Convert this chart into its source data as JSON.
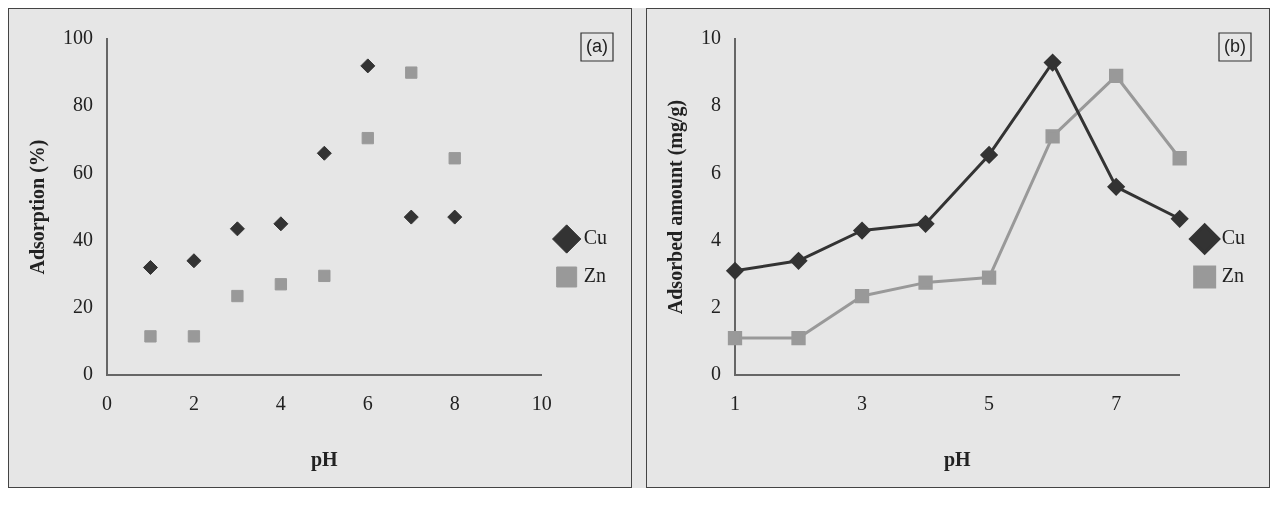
{
  "chart_data": [
    {
      "type": "scatter",
      "x": [
        1,
        2,
        3,
        4,
        5,
        6,
        7,
        8
      ],
      "xlabel": "pH",
      "ylabel": "Adsorption (%)",
      "xlim": [
        0,
        10
      ],
      "xticks": [
        0,
        2,
        4,
        6,
        8,
        10
      ],
      "ylim": [
        0,
        100
      ],
      "yticks": [
        0,
        20,
        40,
        60,
        80,
        100
      ],
      "grid": false,
      "legend": "right",
      "annotations": [
        "(a)"
      ],
      "series": [
        {
          "name": "Cu",
          "color": "#333333",
          "marker": "diamond",
          "values": [
            32,
            34,
            43.5,
            45,
            66,
            92,
            47,
            47
          ]
        },
        {
          "name": "Zn",
          "color": "#999999",
          "marker": "square",
          "values": [
            11.5,
            11.5,
            23.5,
            27,
            29.5,
            70.5,
            90,
            64.5
          ]
        }
      ]
    },
    {
      "type": "line",
      "categories": [
        "1",
        null,
        "3",
        null,
        "5",
        null,
        "7",
        null
      ],
      "xlabel": "pH",
      "ylabel": "Adsorbed amount (mg/g)",
      "ylim": [
        0,
        10
      ],
      "yticks": [
        0,
        2,
        4,
        6,
        8,
        10
      ],
      "grid": false,
      "legend": "right",
      "annotations": [
        "(b)"
      ],
      "series": [
        {
          "name": "Cu",
          "color": "#333333",
          "marker": "diamond",
          "values": [
            3.1,
            3.4,
            4.3,
            4.5,
            6.55,
            9.3,
            5.6,
            4.65
          ]
        },
        {
          "name": "Zn",
          "color": "#999999",
          "marker": "square",
          "values": [
            1.1,
            1.1,
            2.35,
            2.75,
            2.9,
            7.1,
            8.9,
            6.45
          ]
        }
      ]
    }
  ]
}
